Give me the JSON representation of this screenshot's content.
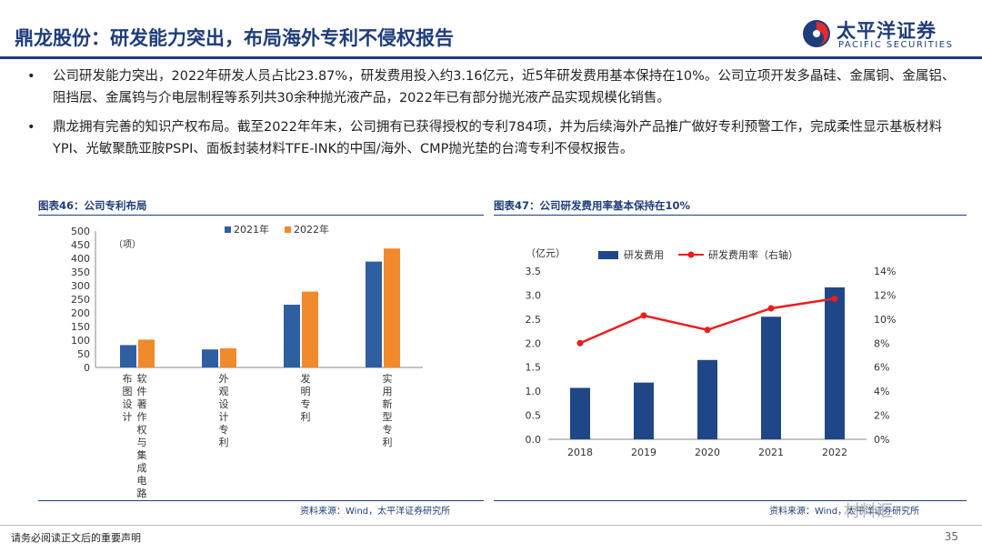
{
  "header": {
    "title": "鼎龙股份：研发能力突出，布局海外专利不侵权报告",
    "brand_name": "太平洋证券",
    "brand_sub": "PACIFIC SECURITIES"
  },
  "bullets": [
    "公司研发能力突出，2022年研发人员占比23.87%，研发费用投入约3.16亿元，近5年研发费用基本保持在10%。公司立项开发多晶硅、金属铜、金属铝、阻挡层、金属钨与介电层制程等系列共30余种抛光液产品，2022年已有部分抛光液产品实现规模化销售。",
    "鼎龙拥有完善的知识产权布局。截至2022年年末，公司拥有已获得授权的专利784项，并为后续海外产品推广做好专利预警工作，完成柔性显示基板材料YPI、光敏聚酰亚胺PSPI、面板封装材料TFE-INK的中国/海外、CMP抛光垫的台湾专利不侵权报告。"
  ],
  "fig46": {
    "title": "图表46：公司专利布局",
    "source": "资料来源：Wind，太平洋证券研究所"
  },
  "fig47": {
    "title": "图表47：公司研发费用率基本保持在10%",
    "source": "资料来源：Wind，太平洋证券研究所"
  },
  "footer": {
    "disclaimer": "请务必阅读正文后的重要声明",
    "page": "35",
    "watermark": "材料汇"
  },
  "colors": {
    "navy": "#1f3d7a",
    "bar_blue": "#2e5fa1",
    "bar_orange": "#f08a2a",
    "line_red": "#ee1c1c",
    "bar_navy": "#1f4788"
  },
  "chart_data": [
    {
      "type": "bar",
      "unit_label": "（项）",
      "categories": [
        "软件著作权与集成电路布图设计",
        "外观设计专利",
        "发明专利",
        "实用新型专利"
      ],
      "category_lines": [
        [
          "软件",
          "件著",
          "作权",
          "与集",
          "成电",
          "路"
        ],
        [
          "外观",
          "设计",
          "专利"
        ],
        [
          "发明",
          "专利"
        ],
        [
          "实用",
          "新型",
          "专利"
        ]
      ],
      "category_cols": [
        [
          "软",
          "件",
          "著",
          "作",
          "权",
          "与",
          "集",
          "成",
          "电",
          "路"
        ],
        [
          "布",
          "图",
          "设",
          "计"
        ]
      ],
      "series": [
        {
          "name": "2021年",
          "values": [
            82,
            66,
            230,
            388
          ]
        },
        {
          "name": "2022年",
          "values": [
            102,
            70,
            278,
            436
          ]
        }
      ],
      "ylim": [
        0,
        500
      ],
      "yticks": [
        0,
        50,
        100,
        150,
        200,
        250,
        300,
        350,
        400,
        450,
        500
      ]
    },
    {
      "type": "bar+line",
      "y_unit_label": "（亿元）",
      "x": [
        "2018",
        "2019",
        "2020",
        "2021",
        "2022"
      ],
      "series": [
        {
          "name": "研发费用",
          "axis": "left",
          "values": [
            1.07,
            1.18,
            1.65,
            2.55,
            3.16
          ]
        },
        {
          "name": "研发费用率（右轴）",
          "axis": "right",
          "values": [
            8.0,
            10.3,
            9.1,
            10.9,
            11.7
          ]
        }
      ],
      "ylim_left": [
        0,
        3.5
      ],
      "yticks_left": [
        "0.0",
        "0.5",
        "1.0",
        "1.5",
        "2.0",
        "2.5",
        "3.0",
        "3.5"
      ],
      "ylim_right": [
        0,
        14
      ],
      "yticks_right": [
        "0%",
        "2%",
        "4%",
        "6%",
        "8%",
        "10%",
        "12%",
        "14%"
      ]
    }
  ]
}
